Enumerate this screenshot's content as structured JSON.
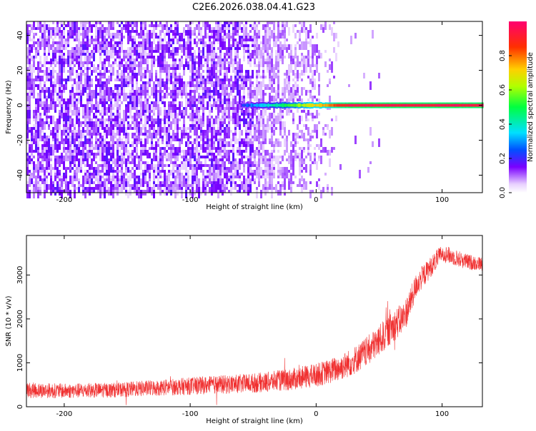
{
  "title": "C2E6.2026.038.04.41.G23",
  "chart_data": [
    {
      "type": "heatmap",
      "xlabel": "Height of straight line (km)",
      "ylabel": "Frequency (Hz)",
      "xlim": [
        -230,
        132
      ],
      "ylim": [
        -50,
        48
      ],
      "xticks": [
        -200,
        -100,
        0,
        100
      ],
      "yticks": [
        -40,
        -20,
        0,
        20,
        40
      ],
      "colorbar": {
        "label": "Normalized spectral amplitude",
        "range": [
          0,
          1
        ],
        "ticks": [
          "0.0",
          "0.2",
          "0.4",
          "0.6",
          "0.8"
        ]
      },
      "signal_line": {
        "frequency": 0,
        "start_height": -60,
        "end_height": 132,
        "amplitude_start": 0.2,
        "amplitude_end": 0.95
      },
      "noise_region": {
        "dense_until": -50,
        "fades_to": 20,
        "amplitude": 0.1
      }
    },
    {
      "type": "line",
      "xlabel": "Height of straight line (km)",
      "ylabel": "SNR (10 * v/v)",
      "xlim": [
        -230,
        132
      ],
      "ylim": [
        0,
        3900
      ],
      "xticks": [
        -200,
        -100,
        0,
        100
      ],
      "yticks": [
        0,
        1000,
        2000,
        3000
      ],
      "color": "#f03030",
      "series": [
        {
          "x": [
            -230,
            -200,
            -180,
            -160,
            -140,
            -120,
            -100,
            -80,
            -60,
            -40,
            -20,
            0,
            10,
            20,
            30,
            40,
            50,
            60,
            70,
            75,
            80,
            90,
            100,
            110,
            120,
            132
          ],
          "y": [
            380,
            360,
            370,
            380,
            410,
            440,
            470,
            500,
            520,
            560,
            620,
            720,
            800,
            900,
            1050,
            1250,
            1500,
            1800,
            2050,
            2400,
            2800,
            3150,
            3500,
            3400,
            3300,
            3250
          ],
          "noise_amplitude": [
            180,
            170,
            170,
            170,
            180,
            190,
            200,
            210,
            220,
            230,
            250,
            270,
            280,
            300,
            320,
            340,
            360,
            360,
            360,
            320,
            280,
            240,
            200,
            190,
            180,
            160
          ]
        }
      ]
    }
  ]
}
